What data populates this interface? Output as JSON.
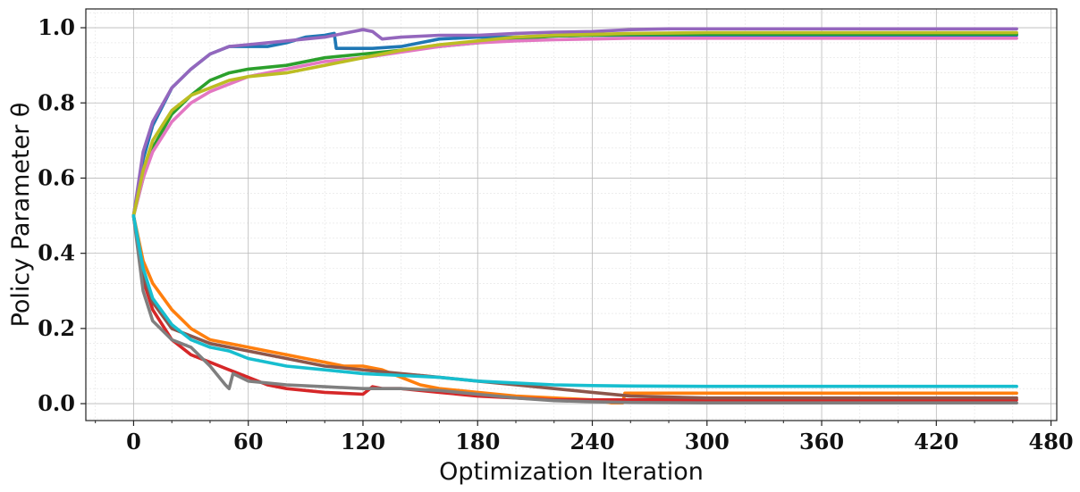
{
  "chart_data": {
    "type": "line",
    "title": "",
    "xlabel": "Optimization Iteration",
    "ylabel": "Policy Parameter θ",
    "xlim": [
      -25,
      483
    ],
    "ylim": [
      -0.045,
      1.05
    ],
    "xticks": [
      0,
      60,
      120,
      180,
      240,
      300,
      360,
      420,
      480
    ],
    "xtick_labels": [
      "0",
      "60",
      "120",
      "180",
      "240",
      "300",
      "360",
      "420",
      "480"
    ],
    "yticks": [
      0.0,
      0.2,
      0.4,
      0.6,
      0.8,
      1.0
    ],
    "ytick_labels": [
      "0.0",
      "0.2",
      "0.4",
      "0.6",
      "0.8",
      "1.0"
    ],
    "grid": true,
    "legend": "none",
    "series": [
      {
        "color": "#1f77b4",
        "x": [
          0,
          5,
          10,
          20,
          30,
          40,
          50,
          60,
          70,
          80,
          90,
          100,
          105,
          106,
          115,
          125,
          140,
          150,
          160,
          180,
          200,
          220,
          240,
          260,
          280,
          300,
          462
        ],
        "y": [
          0.5,
          0.65,
          0.74,
          0.84,
          0.89,
          0.93,
          0.95,
          0.95,
          0.95,
          0.96,
          0.975,
          0.98,
          0.985,
          0.945,
          0.945,
          0.945,
          0.95,
          0.96,
          0.97,
          0.975,
          0.975,
          0.978,
          0.98,
          0.98,
          0.98,
          0.98,
          0.98
        ]
      },
      {
        "color": "#ff7f0e",
        "x": [
          0,
          5,
          10,
          20,
          30,
          40,
          50,
          60,
          70,
          80,
          90,
          100,
          110,
          120,
          130,
          140,
          150,
          160,
          180,
          200,
          220,
          240,
          250,
          256,
          257,
          300,
          462
        ],
        "y": [
          0.5,
          0.38,
          0.32,
          0.25,
          0.2,
          0.17,
          0.16,
          0.15,
          0.14,
          0.13,
          0.12,
          0.11,
          0.1,
          0.1,
          0.09,
          0.07,
          0.05,
          0.04,
          0.03,
          0.02,
          0.015,
          0.01,
          0.002,
          0.002,
          0.028,
          0.028,
          0.028
        ]
      },
      {
        "color": "#2ca02c",
        "x": [
          0,
          5,
          10,
          20,
          30,
          40,
          50,
          60,
          80,
          100,
          120,
          140,
          160,
          180,
          200,
          220,
          240,
          260,
          300,
          462
        ],
        "y": [
          0.5,
          0.6,
          0.68,
          0.77,
          0.82,
          0.86,
          0.88,
          0.89,
          0.9,
          0.92,
          0.93,
          0.94,
          0.95,
          0.96,
          0.97,
          0.978,
          0.98,
          0.982,
          0.983,
          0.983
        ]
      },
      {
        "color": "#d62728",
        "x": [
          0,
          5,
          10,
          20,
          30,
          40,
          50,
          60,
          70,
          80,
          90,
          100,
          120,
          125,
          130,
          140,
          150,
          160,
          180,
          200,
          220,
          240,
          260,
          300,
          462
        ],
        "y": [
          0.5,
          0.33,
          0.25,
          0.17,
          0.13,
          0.11,
          0.09,
          0.07,
          0.05,
          0.04,
          0.035,
          0.03,
          0.025,
          0.045,
          0.04,
          0.04,
          0.035,
          0.03,
          0.02,
          0.015,
          0.01,
          0.01,
          0.01,
          0.01,
          0.01
        ]
      },
      {
        "color": "#9467bd",
        "x": [
          0,
          5,
          10,
          20,
          30,
          40,
          50,
          60,
          70,
          80,
          90,
          100,
          110,
          120,
          125,
          130,
          140,
          160,
          180,
          200,
          220,
          240,
          260,
          280,
          300,
          462
        ],
        "y": [
          0.5,
          0.67,
          0.75,
          0.84,
          0.89,
          0.93,
          0.95,
          0.955,
          0.96,
          0.965,
          0.97,
          0.975,
          0.985,
          0.995,
          0.99,
          0.97,
          0.975,
          0.98,
          0.98,
          0.985,
          0.988,
          0.99,
          0.995,
          0.997,
          0.997,
          0.997
        ]
      },
      {
        "color": "#8c564b",
        "x": [
          0,
          5,
          10,
          20,
          30,
          40,
          50,
          60,
          80,
          100,
          120,
          140,
          160,
          180,
          200,
          220,
          240,
          260,
          300,
          462
        ],
        "y": [
          0.5,
          0.34,
          0.27,
          0.2,
          0.18,
          0.16,
          0.15,
          0.14,
          0.12,
          0.1,
          0.09,
          0.08,
          0.07,
          0.06,
          0.05,
          0.04,
          0.03,
          0.02,
          0.015,
          0.015
        ]
      },
      {
        "color": "#e377c2",
        "x": [
          0,
          5,
          10,
          20,
          30,
          40,
          50,
          60,
          80,
          100,
          120,
          140,
          160,
          180,
          200,
          220,
          240,
          260,
          300,
          462
        ],
        "y": [
          0.5,
          0.6,
          0.67,
          0.75,
          0.8,
          0.83,
          0.85,
          0.87,
          0.89,
          0.91,
          0.92,
          0.935,
          0.95,
          0.96,
          0.965,
          0.968,
          0.97,
          0.972,
          0.972,
          0.972
        ]
      },
      {
        "color": "#7f7f7f",
        "x": [
          0,
          5,
          10,
          20,
          30,
          40,
          48,
          50,
          52,
          60,
          80,
          100,
          120,
          140,
          160,
          180,
          200,
          220,
          240,
          260,
          300,
          462
        ],
        "y": [
          0.5,
          0.3,
          0.22,
          0.17,
          0.15,
          0.1,
          0.05,
          0.04,
          0.08,
          0.06,
          0.05,
          0.045,
          0.04,
          0.04,
          0.035,
          0.025,
          0.015,
          0.008,
          0.005,
          0.003,
          0.002,
          0.002
        ]
      },
      {
        "color": "#bcbd22",
        "x": [
          0,
          5,
          10,
          20,
          30,
          40,
          50,
          60,
          80,
          100,
          120,
          140,
          160,
          180,
          200,
          220,
          240,
          260,
          300,
          462
        ],
        "y": [
          0.5,
          0.62,
          0.7,
          0.78,
          0.82,
          0.84,
          0.86,
          0.87,
          0.88,
          0.9,
          0.92,
          0.94,
          0.955,
          0.965,
          0.975,
          0.98,
          0.982,
          0.985,
          0.987,
          0.987
        ]
      },
      {
        "color": "#17becf",
        "x": [
          0,
          5,
          10,
          20,
          30,
          40,
          50,
          60,
          80,
          100,
          120,
          140,
          160,
          180,
          200,
          220,
          240,
          260,
          300,
          462
        ],
        "y": [
          0.5,
          0.36,
          0.28,
          0.21,
          0.17,
          0.15,
          0.14,
          0.12,
          0.1,
          0.09,
          0.08,
          0.075,
          0.07,
          0.06,
          0.055,
          0.05,
          0.048,
          0.047,
          0.046,
          0.046
        ]
      }
    ]
  }
}
